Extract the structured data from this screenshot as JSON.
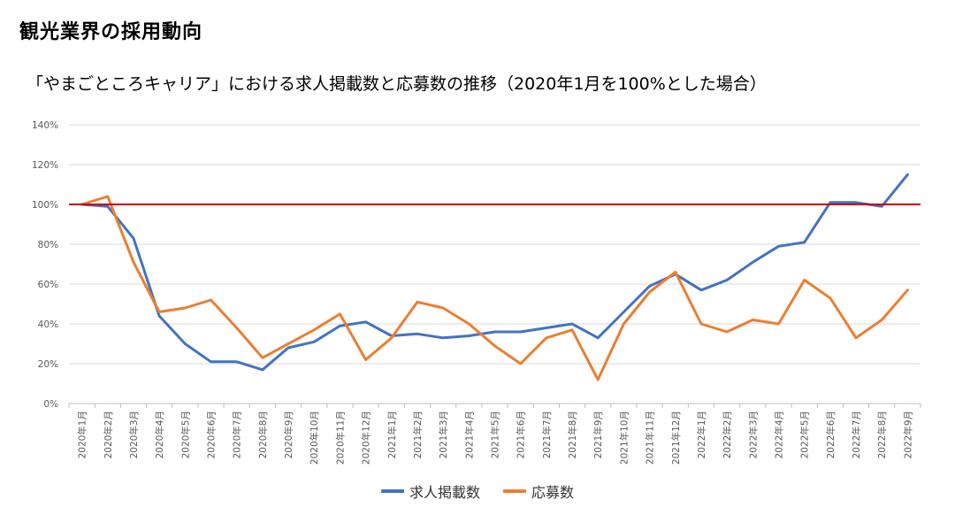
{
  "page": {
    "title": "観光業界の採用動向",
    "subtitle": "「やまごところキャリア」における求人掲載数と応募数の推移（2020年1月を100%とした場合）"
  },
  "chart_data": {
    "type": "line",
    "title": "",
    "xlabel": "",
    "ylabel": "",
    "ylim": [
      0,
      140
    ],
    "y_unit": "%",
    "y_ticks": [
      0,
      20,
      40,
      60,
      80,
      100,
      120,
      140
    ],
    "y_tick_labels": [
      "0%",
      "20%",
      "40%",
      "60%",
      "80%",
      "100%",
      "120%",
      "140%"
    ],
    "grid": true,
    "legend_position": "bottom",
    "categories": [
      "2020年1月",
      "2020年2月",
      "2020年3月",
      "2020年4月",
      "2020年5月",
      "2020年6月",
      "2020年7月",
      "2020年8月",
      "2020年9月",
      "2020年10月",
      "2020年11月",
      "2020年12月",
      "2021年1月",
      "2021年2月",
      "2021年3月",
      "2021年4月",
      "2021年5月",
      "2021年6月",
      "2021年7月",
      "2021年8月",
      "2021年9月",
      "2021年10月",
      "2021年11月",
      "2021年12月",
      "2022年1月",
      "2022年2月",
      "2022年3月",
      "2022年4月",
      "2022年5月",
      "2022年6月",
      "2022年7月",
      "2022年8月",
      "2022年9月"
    ],
    "series": [
      {
        "name": "求人掲載数",
        "color": "#4472c4",
        "values": [
          100,
          99,
          83,
          44,
          30,
          21,
          21,
          17,
          28,
          31,
          39,
          41,
          34,
          35,
          33,
          34,
          36,
          36,
          38,
          40,
          33,
          46,
          59,
          65,
          57,
          62,
          71,
          79,
          81,
          101,
          101,
          99,
          115
        ]
      },
      {
        "name": "応募数",
        "color": "#ed7d31",
        "values": [
          100,
          104,
          71,
          46,
          48,
          52,
          38,
          23,
          30,
          37,
          45,
          22,
          33,
          51,
          48,
          40,
          29,
          20,
          33,
          37,
          12,
          40,
          56,
          66,
          40,
          36,
          42,
          40,
          62,
          53,
          33,
          42,
          57
        ]
      }
    ],
    "reference_line": {
      "value": 100,
      "color": "#c00000"
    }
  }
}
